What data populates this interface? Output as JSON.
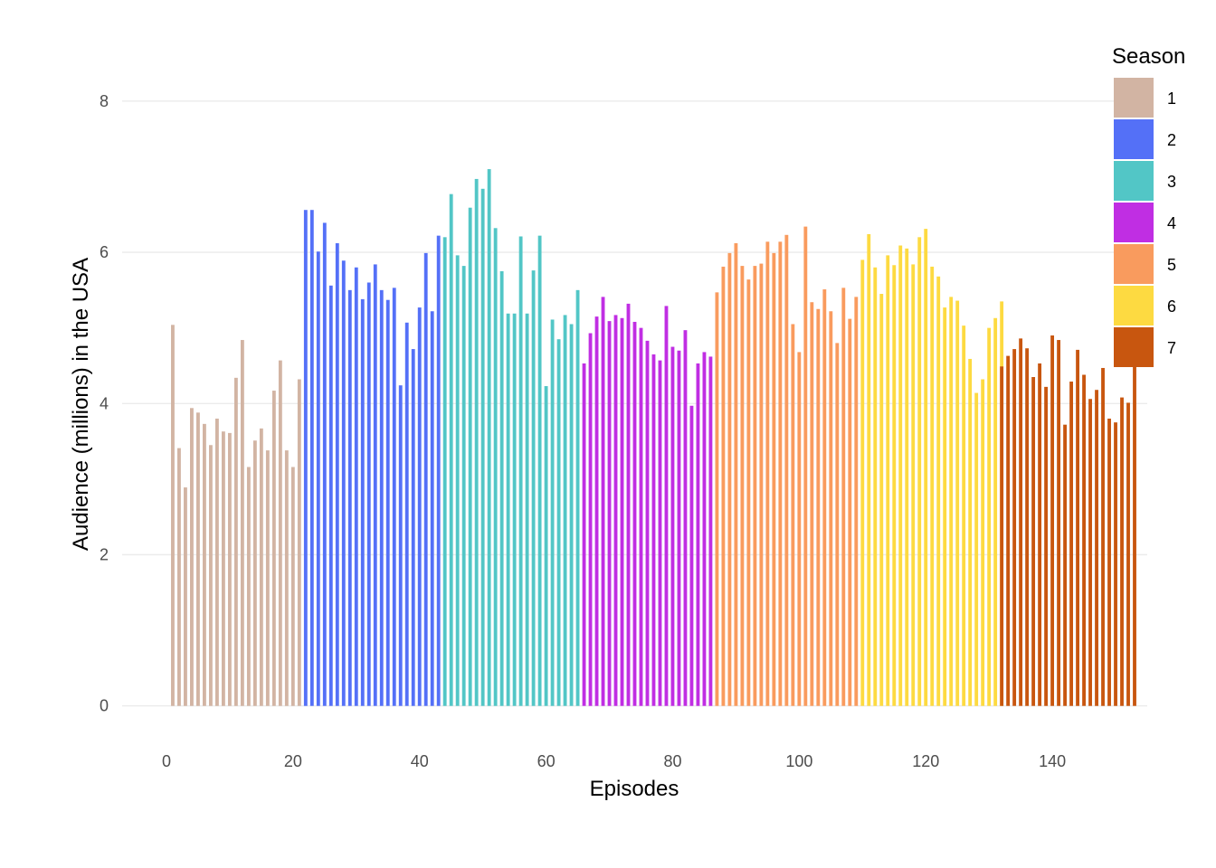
{
  "chart_data": {
    "type": "bar",
    "title": "",
    "xlabel": "Episodes",
    "ylabel": "Audience (millions) in the USA",
    "xlim": [
      -7,
      155
    ],
    "ylim": [
      -0.35,
      8.5
    ],
    "x_ticks": [
      0,
      20,
      40,
      60,
      80,
      100,
      120,
      140
    ],
    "y_ticks": [
      0,
      2,
      4,
      6,
      8
    ],
    "grid": "horizontal major lines",
    "legend": {
      "title": "Season",
      "position": "right-top"
    },
    "series": [
      {
        "name": "1",
        "color": "#D2B4A3",
        "x_start": 1,
        "values": [
          5.04,
          3.41,
          2.89,
          3.94,
          3.88,
          3.73,
          3.45,
          3.8,
          3.63,
          3.61,
          4.34,
          4.84,
          3.16,
          3.51,
          3.67,
          3.38,
          4.17,
          4.57,
          3.38,
          3.16,
          4.32
        ]
      },
      {
        "name": "2",
        "color": "#5470F7",
        "x_start": 22,
        "values": [
          6.56,
          6.56,
          6.01,
          6.39,
          5.56,
          6.12,
          5.89,
          5.5,
          5.8,
          5.38,
          5.6,
          5.84,
          5.5,
          5.37,
          5.53,
          4.24,
          5.07,
          4.72,
          5.27,
          5.99,
          5.22,
          6.22
        ]
      },
      {
        "name": "3",
        "color": "#52C6C6",
        "x_start": 44,
        "values": [
          6.2,
          6.77,
          5.96,
          5.82,
          6.59,
          6.97,
          6.84,
          7.1,
          6.32,
          5.75,
          5.19,
          5.19,
          6.21,
          5.19,
          5.76,
          6.22,
          4.23,
          5.11,
          4.85,
          5.17,
          5.05,
          5.5
        ]
      },
      {
        "name": "4",
        "color": "#C02EE3",
        "x_start": 66,
        "values": [
          4.53,
          4.93,
          5.15,
          5.41,
          5.09,
          5.17,
          5.13,
          5.32,
          5.08,
          5.0,
          4.83,
          4.65,
          4.57,
          5.29,
          4.75,
          4.7,
          4.97,
          3.97,
          4.53,
          4.68,
          4.62
        ]
      },
      {
        "name": "5",
        "color": "#F99B5E",
        "x_start": 87,
        "values": [
          5.47,
          5.81,
          5.99,
          6.12,
          5.82,
          5.64,
          5.82,
          5.85,
          6.14,
          5.99,
          6.14,
          6.23,
          5.05,
          4.68,
          6.34,
          5.34,
          5.25,
          5.51,
          5.22,
          4.8,
          5.53,
          5.12,
          5.41
        ]
      },
      {
        "name": "6",
        "color": "#FDDA41",
        "x_start": 110,
        "values": [
          5.9,
          6.24,
          5.8,
          5.45,
          5.96,
          5.83,
          6.09,
          6.05,
          5.84,
          6.2,
          6.31,
          5.81,
          5.68,
          5.27,
          5.41,
          5.36,
          5.03,
          4.59,
          4.14,
          4.32,
          5.0,
          5.13,
          5.35
        ]
      },
      {
        "name": "7",
        "color": "#C8560F",
        "x_start": 132,
        "values": [
          4.49,
          4.63,
          4.72,
          4.86,
          4.73,
          4.35,
          4.53,
          4.22,
          4.9,
          4.84,
          3.72,
          4.29,
          4.71,
          4.38,
          4.06,
          4.18,
          4.47,
          3.8,
          3.75,
          4.08,
          4.01,
          4.86
        ]
      }
    ]
  }
}
